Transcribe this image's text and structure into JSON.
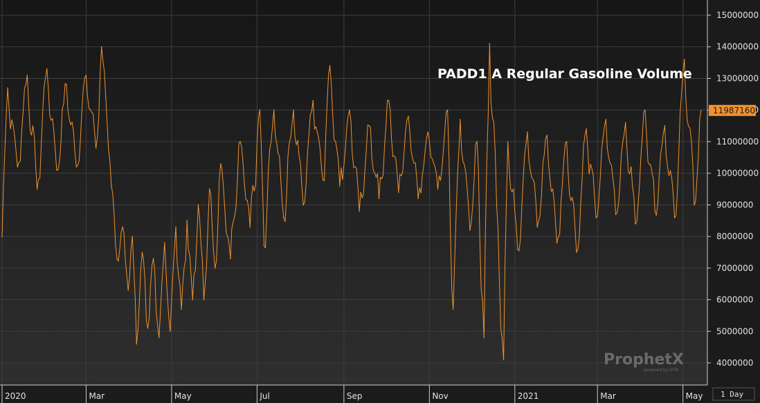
{
  "colors": {
    "background_top": "#161616",
    "background_bottom": "#2e2e2e",
    "grid": "#3e3e3e",
    "line": "#f0922e",
    "last_value_badge": "#f0922e",
    "text": "#e2e2e2",
    "title": "#ffffff",
    "watermark": "#6a6a6a"
  },
  "logo": {
    "text": "ProphetX",
    "sub": "powered by DTN"
  },
  "interval": {
    "label": "1 Day"
  },
  "chart_data": {
    "type": "line",
    "title": "PADD1 A Regular Gasoline Volume",
    "xlabel": "",
    "ylabel": "",
    "ylim": [
      3300000,
      15600000
    ],
    "yticks": [
      4000000,
      5000000,
      6000000,
      7000000,
      8000000,
      9000000,
      10000000,
      11000000,
      12000000,
      13000000,
      14000000,
      15000000
    ],
    "ytick_labels": [
      "4000000",
      "5000000",
      "6000000",
      "7000000",
      "8000000",
      "9000000",
      "10000000",
      "11000000",
      "12000000",
      "13000000",
      "14000000",
      "15000000"
    ],
    "x_range": [
      "2020-01-01",
      "2021-05-14"
    ],
    "x_ticks": [
      {
        "label": "2020",
        "date": "2020-01-01"
      },
      {
        "label": "Mar",
        "date": "2020-03-01"
      },
      {
        "label": "May",
        "date": "2020-05-01"
      },
      {
        "label": "Jul",
        "date": "2020-07-01"
      },
      {
        "label": "Sep",
        "date": "2020-09-01"
      },
      {
        "label": "Nov",
        "date": "2020-11-01"
      },
      {
        "label": "2021",
        "date": "2021-01-01"
      },
      {
        "label": "Mar",
        "date": "2021-03-01"
      },
      {
        "label": "May",
        "date": "2021-05-01"
      }
    ],
    "last_value": 11987160,
    "last_value_label": "11987160",
    "grid": true,
    "legend": "none",
    "series": [
      {
        "frequency": "daily",
        "weekly_pattern": "weekday highs, weekend lows",
        "points": [
          [
            "2020-01-01",
            8000000
          ],
          [
            "2020-01-05",
            12700000
          ],
          [
            "2020-01-12",
            10200000
          ],
          [
            "2020-01-19",
            13100000
          ],
          [
            "2020-01-26",
            9500000
          ],
          [
            "2020-02-02",
            13300000
          ],
          [
            "2020-02-09",
            10100000
          ],
          [
            "2020-02-16",
            12800000
          ],
          [
            "2020-02-23",
            10200000
          ],
          [
            "2020-03-01",
            13100000
          ],
          [
            "2020-03-08",
            10800000
          ],
          [
            "2020-03-12",
            14000000
          ],
          [
            "2020-03-15",
            12400000
          ],
          [
            "2020-03-19",
            9600000
          ],
          [
            "2020-03-23",
            7300000
          ],
          [
            "2020-03-27",
            8300000
          ],
          [
            "2020-03-31",
            6300000
          ],
          [
            "2020-04-03",
            8000000
          ],
          [
            "2020-04-06",
            4600000
          ],
          [
            "2020-04-10",
            7500000
          ],
          [
            "2020-04-14",
            5100000
          ],
          [
            "2020-04-18",
            7300000
          ],
          [
            "2020-04-22",
            4800000
          ],
          [
            "2020-04-26",
            7800000
          ],
          [
            "2020-04-30",
            5000000
          ],
          [
            "2020-05-04",
            8300000
          ],
          [
            "2020-05-08",
            5700000
          ],
          [
            "2020-05-12",
            8500000
          ],
          [
            "2020-05-16",
            6000000
          ],
          [
            "2020-05-20",
            9000000
          ],
          [
            "2020-05-24",
            6000000
          ],
          [
            "2020-05-28",
            9500000
          ],
          [
            "2020-06-01",
            7000000
          ],
          [
            "2020-06-05",
            10300000
          ],
          [
            "2020-06-12",
            7300000
          ],
          [
            "2020-06-19",
            11000000
          ],
          [
            "2020-06-26",
            8300000
          ],
          [
            "2020-07-03",
            12000000
          ],
          [
            "2020-07-06",
            7700000
          ],
          [
            "2020-07-13",
            12000000
          ],
          [
            "2020-07-20",
            8600000
          ],
          [
            "2020-07-27",
            12000000
          ],
          [
            "2020-08-03",
            9000000
          ],
          [
            "2020-08-10",
            12300000
          ],
          [
            "2020-08-17",
            9800000
          ],
          [
            "2020-08-22",
            13400000
          ],
          [
            "2020-08-29",
            9600000
          ],
          [
            "2020-09-05",
            12000000
          ],
          [
            "2020-09-12",
            8800000
          ],
          [
            "2020-09-19",
            11500000
          ],
          [
            "2020-09-26",
            9200000
          ],
          [
            "2020-10-03",
            12300000
          ],
          [
            "2020-10-10",
            9400000
          ],
          [
            "2020-10-17",
            11800000
          ],
          [
            "2020-10-24",
            9200000
          ],
          [
            "2020-10-31",
            11300000
          ],
          [
            "2020-11-07",
            9500000
          ],
          [
            "2020-11-14",
            12000000
          ],
          [
            "2020-11-18",
            5700000
          ],
          [
            "2020-11-23",
            11700000
          ],
          [
            "2020-11-30",
            8200000
          ],
          [
            "2020-12-05",
            11000000
          ],
          [
            "2020-12-10",
            4800000
          ],
          [
            "2020-12-14",
            14100000
          ],
          [
            "2020-12-19",
            9000000
          ],
          [
            "2020-12-24",
            4100000
          ],
          [
            "2020-12-27",
            11000000
          ],
          [
            "2021-01-03",
            7600000
          ],
          [
            "2021-01-10",
            11300000
          ],
          [
            "2021-01-17",
            8300000
          ],
          [
            "2021-01-24",
            11200000
          ],
          [
            "2021-01-31",
            7800000
          ],
          [
            "2021-02-07",
            11000000
          ],
          [
            "2021-02-14",
            7500000
          ],
          [
            "2021-02-21",
            11400000
          ],
          [
            "2021-02-28",
            8600000
          ],
          [
            "2021-03-07",
            11700000
          ],
          [
            "2021-03-14",
            8700000
          ],
          [
            "2021-03-21",
            11600000
          ],
          [
            "2021-03-28",
            8400000
          ],
          [
            "2021-04-04",
            12000000
          ],
          [
            "2021-04-11",
            8800000
          ],
          [
            "2021-04-18",
            11500000
          ],
          [
            "2021-04-25",
            8600000
          ],
          [
            "2021-05-02",
            13600000
          ],
          [
            "2021-05-09",
            9000000
          ],
          [
            "2021-05-14",
            11987160
          ]
        ]
      }
    ]
  }
}
